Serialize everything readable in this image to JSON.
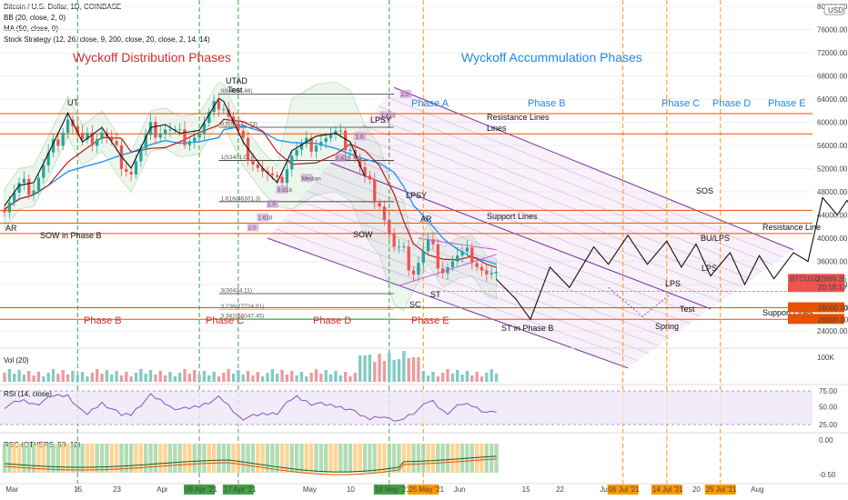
{
  "header": {
    "title": "Bitcoin / U.S. Dollar, 1D, COINBASE",
    "indicators": [
      "BB (20, close, 2, 0)",
      "MA (50, close, 0)",
      "Stock Strategy (12, 26, close, 9, 200, close, 20, close, 2, 14, 14)"
    ],
    "currency_badge": "USD"
  },
  "colors": {
    "up": "#26a69a",
    "down": "#ef5350",
    "ma": "#2196f3",
    "bb_mid": "#b71c1c",
    "phase_red": "#d32f2f",
    "phase_blue": "#1e88e5",
    "orange_line": "#ff9800",
    "green_line": "#43a047",
    "channel": "#7b1fa2",
    "support": "#e65100"
  },
  "chart_data": [
    {
      "type": "line",
      "title": "Bitcoin / U.S. Dollar, 1D, COINBASE",
      "price_axis": {
        "ticks": [
          80000,
          76000,
          72000,
          68000,
          64000,
          60000,
          56000,
          52000,
          48000,
          44000,
          40000,
          36000,
          32000,
          28000,
          24000
        ],
        "labels": [
          "80000.00",
          "76000.00",
          "72000.00",
          "68000.00",
          "64000.00",
          "60000.00",
          "56000.00",
          "52000.00",
          "48000.00",
          "44000.00",
          "40000.00",
          "36000.00",
          "32000.00",
          "28000.00",
          "24000.00"
        ],
        "top_label": "80000.00"
      },
      "time_axis": {
        "labels": [
          "Mar",
          "15",
          "23",
          "Apr",
          "17",
          "May",
          "10",
          "25",
          "Jun",
          "15",
          "22",
          "Jul",
          "20",
          "Aug"
        ],
        "tags": [
          "09 Apr '21",
          "17 Apr '21",
          "18 May '21",
          "25 May '21",
          "05 Jul '21",
          "14 Jul '21",
          "25 Jul '21"
        ]
      },
      "price_tags": [
        {
          "label": "BTCUSD",
          "value": "32899.35",
          "sub": "20:18:13"
        },
        {
          "value": "28000.00"
        },
        {
          "value": "26000.00"
        }
      ],
      "close_path": [
        {
          "d": "Feb 28",
          "v": 45000
        },
        {
          "d": "Mar 3",
          "v": 48500
        },
        {
          "d": "Mar 6",
          "v": 49000
        },
        {
          "d": "Mar 9",
          "v": 54000
        },
        {
          "d": "Mar 13",
          "v": 61000
        },
        {
          "d": "Mar 16",
          "v": 56000
        },
        {
          "d": "Mar 20",
          "v": 58500
        },
        {
          "d": "Mar 24",
          "v": 53500
        },
        {
          "d": "Mar 26",
          "v": 51500
        },
        {
          "d": "Mar 30",
          "v": 58500
        },
        {
          "d": "Apr 2",
          "v": 59000
        },
        {
          "d": "Apr 5",
          "v": 57500
        },
        {
          "d": "Apr 9",
          "v": 58000
        },
        {
          "d": "Apr 13",
          "v": 63500
        },
        {
          "d": "Apr 14",
          "v": 63000
        },
        {
          "d": "Apr 18",
          "v": 56000
        },
        {
          "d": "Apr 22",
          "v": 51500
        },
        {
          "d": "Apr 25",
          "v": 49000
        },
        {
          "d": "Apr 28",
          "v": 54500
        },
        {
          "d": "May 3",
          "v": 57000
        },
        {
          "d": "May 7",
          "v": 57500
        },
        {
          "d": "May 10",
          "v": 56000
        },
        {
          "d": "May 13",
          "v": 50000
        },
        {
          "d": "May 16",
          "v": 46500
        },
        {
          "d": "May 19",
          "v": 38000
        },
        {
          "d": "May 21",
          "v": 37000
        },
        {
          "d": "May 23",
          "v": 34500
        },
        {
          "d": "May 26",
          "v": 39000
        },
        {
          "d": "May 29",
          "v": 35000
        },
        {
          "d": "Jun 1",
          "v": 36500
        },
        {
          "d": "Jun 4",
          "v": 37000
        },
        {
          "d": "Jun 7",
          "v": 33500
        },
        {
          "d": "Jun 9",
          "v": 32900
        }
      ],
      "projection_path": [
        {
          "d": "Jun 9",
          "v": 32900
        },
        {
          "d": "Jun 13",
          "v": 29500
        },
        {
          "d": "Jun 16",
          "v": 26000
        },
        {
          "d": "Jun 20",
          "v": 35000
        },
        {
          "d": "Jun 24",
          "v": 31500
        },
        {
          "d": "Jun 29",
          "v": 38500
        },
        {
          "d": "Jul 2",
          "v": 35500
        },
        {
          "d": "Jul 6",
          "v": 40500
        },
        {
          "d": "Jul 10",
          "v": 35500
        },
        {
          "d": "Jul 14",
          "v": 39500
        },
        {
          "d": "Jul 17",
          "v": 35000
        },
        {
          "d": "Jul 20",
          "v": 39000
        },
        {
          "d": "Jul 23",
          "v": 33500
        },
        {
          "d": "Jul 27",
          "v": 37500
        },
        {
          "d": "Jul 30",
          "v": 32000
        },
        {
          "d": "Aug 2",
          "v": 37000
        },
        {
          "d": "Aug 5",
          "v": 33000
        },
        {
          "d": "Aug 9",
          "v": 37500
        },
        {
          "d": "Aug 12",
          "v": 36000
        },
        {
          "d": "Aug 15",
          "v": 47000
        },
        {
          "d": "Aug 18",
          "v": 44000
        },
        {
          "d": "Aug 20",
          "v": 46500
        },
        {
          "d": "Aug 22",
          "v": 44500
        },
        {
          "d": "Aug 29",
          "v": 57000
        }
      ],
      "horizontal_levels": [
        {
          "value": 61500,
          "label": "Resistance Lines",
          "color": "#e65100"
        },
        {
          "value": 58000,
          "label": "",
          "color": "#e65100"
        },
        {
          "value": 44800,
          "label": "Support Lines",
          "color": "#e65100"
        },
        {
          "value": 42600,
          "label": "",
          "color": "#e65100"
        },
        {
          "value": 40800,
          "label": "Resistance Line",
          "color": "#e65100"
        },
        {
          "value": 28000,
          "label": "",
          "color": "#e65100"
        },
        {
          "value": 26000,
          "label": "Support Lines",
          "color": "#e65100"
        }
      ],
      "fib_levels": [
        {
          "label": "0(64884.46)",
          "value": 64884
        },
        {
          "label": "0.5(59142.73)",
          "value": 59142
        },
        {
          "label": "1(53401.01)",
          "value": 53401
        },
        {
          "label": "1.618(46301.3)",
          "value": 46301
        },
        {
          "label": "3(30434.11)",
          "value": 30434
        },
        {
          "label": "3.236(27724.01)",
          "value": 27724
        },
        {
          "label": "3.382(26047.45)",
          "value": 26047
        }
      ],
      "channel_labels": [
        "2.0",
        "1.618",
        "1.0",
        "0.618",
        "Median",
        "0.618",
        "1.0",
        "1.618",
        "2.0"
      ],
      "phase_labels": [
        {
          "text": "Wyckoff Distribution Phases",
          "color": "#d32f2f"
        },
        {
          "text": "Wyckoff Accummulation Phases",
          "color": "#1e88e5"
        },
        {
          "text": "Phase A",
          "color": "#1e88e5"
        },
        {
          "text": "Phase B",
          "color": "#1e88e5"
        },
        {
          "text": "Phase C",
          "color": "#1e88e5"
        },
        {
          "text": "Phase D",
          "color": "#1e88e5"
        },
        {
          "text": "Phase E",
          "color": "#1e88e5"
        },
        {
          "text": "Phase B",
          "color": "#d32f2f"
        },
        {
          "text": "Phase C",
          "color": "#d32f2f"
        },
        {
          "text": "Phase D",
          "color": "#d32f2f"
        },
        {
          "text": "Phase E",
          "color": "#d32f2f"
        }
      ],
      "annotations": [
        {
          "text": "UT"
        },
        {
          "text": "UTAD"
        },
        {
          "text": "Test"
        },
        {
          "text": "LPSY"
        },
        {
          "text": "LPSY"
        },
        {
          "text": "AR"
        },
        {
          "text": "AR"
        },
        {
          "text": "SOW in Phase B"
        },
        {
          "text": "SOW"
        },
        {
          "text": "SC"
        },
        {
          "text": "ST"
        },
        {
          "text": "ST in Phase B"
        },
        {
          "text": "LPS"
        },
        {
          "text": "LPS"
        },
        {
          "text": "BU/LPS"
        },
        {
          "text": "SOS"
        },
        {
          "text": "Spring"
        },
        {
          "text": "Test"
        }
      ]
    },
    {
      "type": "bar",
      "title": "Vol (20)",
      "axis_label": "100K"
    },
    {
      "type": "line",
      "title": "RSI (14, close)",
      "ticks": [
        "75.00",
        "50.00",
        "25.00"
      ]
    },
    {
      "type": "area",
      "title": "RSC (OTHERS, 50, 10)",
      "ticks": [
        "0.00",
        "-0.50"
      ]
    }
  ]
}
